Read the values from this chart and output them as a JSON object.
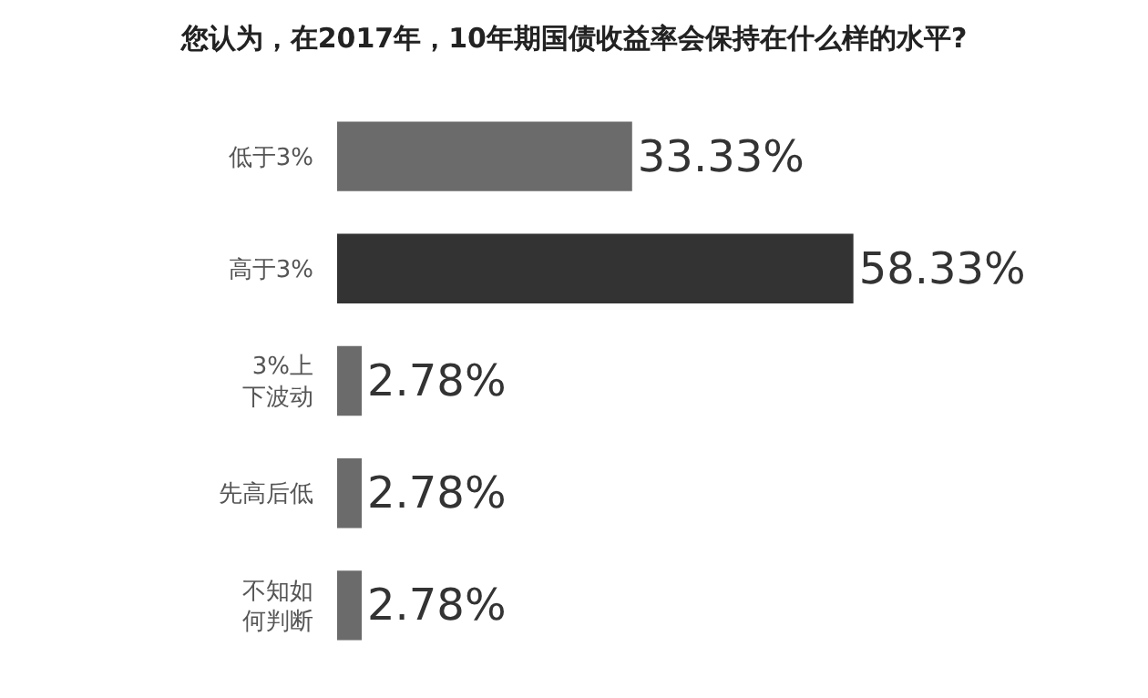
{
  "chart_data": {
    "type": "bar",
    "orientation": "horizontal",
    "title": "您认为，在2017年，10年期国债收益率会保持在什么样的水平?",
    "categories": [
      "低于3%",
      "高于3%",
      "3%上下波动",
      "先高后低",
      "不知如何判断"
    ],
    "values": [
      33.33,
      58.33,
      2.78,
      2.78,
      2.78
    ],
    "colors": [
      "#6b6b6b",
      "#333333",
      "#6b6b6b",
      "#6b6b6b",
      "#6b6b6b"
    ],
    "value_labels": [
      "33.33%",
      "58.33%",
      "2.78%",
      "2.78%",
      "2.78%"
    ]
  }
}
